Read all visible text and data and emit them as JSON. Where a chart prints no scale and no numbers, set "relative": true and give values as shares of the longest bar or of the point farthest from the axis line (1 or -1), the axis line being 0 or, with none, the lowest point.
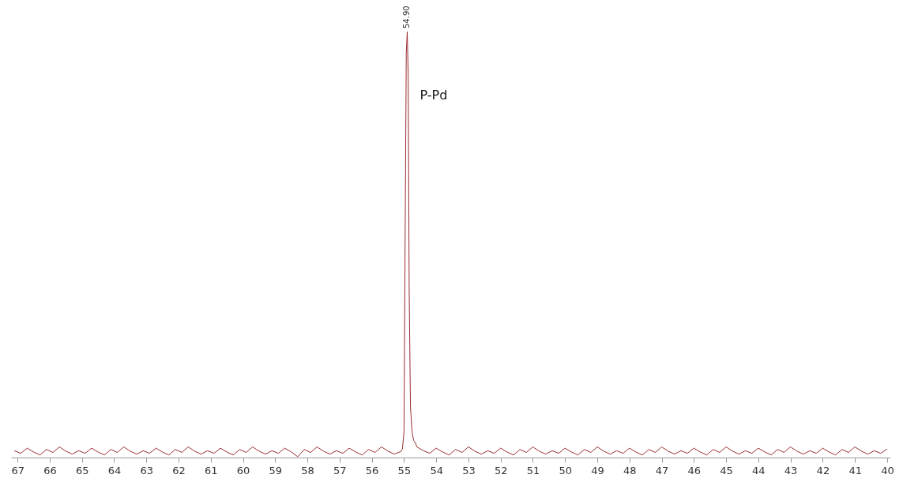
{
  "chart_data": {
    "type": "line",
    "relative": true,
    "tick_labels": "x",
    "xlim": [
      67.2,
      39.9
    ],
    "xticks": [
      67,
      66,
      65,
      64,
      63,
      62,
      61,
      60,
      59,
      58,
      57,
      56,
      55,
      54,
      53,
      52,
      51,
      50,
      49,
      48,
      47,
      46,
      45,
      44,
      43,
      42,
      41,
      40
    ],
    "annotations": [
      {
        "text": "54.90",
        "x": 54.9,
        "y": 1
      },
      {
        "text": "P-Pd",
        "x": 54.9,
        "y": 0.85
      }
    ],
    "series": [
      {
        "color": "#9b2d30",
        "x": [
          67.1,
          66.9,
          66.7,
          66.5,
          66.3,
          66.1,
          65.9,
          65.7,
          65.5,
          65.3,
          65.1,
          64.9,
          64.7,
          64.5,
          64.3,
          64.1,
          63.9,
          63.7,
          63.5,
          63.3,
          63.1,
          62.9,
          62.7,
          62.5,
          62.3,
          62.1,
          61.9,
          61.7,
          61.5,
          61.3,
          61.1,
          60.9,
          60.7,
          60.5,
          60.3,
          60.1,
          59.9,
          59.7,
          59.5,
          59.3,
          59.1,
          58.9,
          58.7,
          58.5,
          58.3,
          58.1,
          57.9,
          57.7,
          57.5,
          57.3,
          57.1,
          56.9,
          56.7,
          56.5,
          56.3,
          56.1,
          55.9,
          55.7,
          55.5,
          55.3,
          55.1,
          55.05,
          55,
          54.97,
          54.93,
          54.9,
          54.87,
          54.84,
          54.8,
          54.75,
          54.7,
          54.65,
          54.6,
          54.4,
          54.2,
          54,
          53.8,
          53.6,
          53.4,
          53.2,
          53,
          52.8,
          52.6,
          52.4,
          52.2,
          52,
          51.8,
          51.6,
          51.4,
          51.2,
          51,
          50.8,
          50.6,
          50.4,
          50.2,
          50,
          49.8,
          49.6,
          49.4,
          49.2,
          49,
          48.8,
          48.6,
          48.4,
          48.2,
          48,
          47.8,
          47.6,
          47.4,
          47.2,
          47,
          46.8,
          46.6,
          46.4,
          46.2,
          46,
          45.8,
          45.6,
          45.4,
          45.2,
          45,
          44.8,
          44.6,
          44.4,
          44.2,
          44,
          43.8,
          43.6,
          43.4,
          43.2,
          43,
          42.8,
          42.6,
          42.4,
          42.2,
          42,
          41.8,
          41.6,
          41.4,
          41.2,
          41,
          40.8,
          40.6,
          40.4,
          40.2,
          40
        ],
        "values": [
          0.016,
          0.01,
          0.022,
          0.013,
          0.006,
          0.019,
          0.012,
          0.025,
          0.015,
          0.008,
          0.016,
          0.01,
          0.022,
          0.013,
          0.006,
          0.019,
          0.012,
          0.025,
          0.015,
          0.008,
          0.016,
          0.01,
          0.022,
          0.013,
          0.006,
          0.019,
          0.012,
          0.025,
          0.015,
          0.008,
          0.016,
          0.01,
          0.022,
          0.013,
          0.006,
          0.019,
          0.012,
          0.025,
          0.015,
          0.008,
          0.016,
          0.01,
          0.022,
          0.013,
          0.002,
          0.019,
          0.012,
          0.025,
          0.015,
          0.008,
          0.016,
          0.01,
          0.022,
          0.013,
          0.006,
          0.019,
          0.012,
          0.025,
          0.015,
          0.008,
          0.014,
          0.02,
          0.06,
          0.45,
          0.95,
          1,
          0.9,
          0.4,
          0.12,
          0.06,
          0.04,
          0.035,
          0.025,
          0.016,
          0.01,
          0.022,
          0.013,
          0.006,
          0.019,
          0.012,
          0.025,
          0.015,
          0.008,
          0.016,
          0.01,
          0.022,
          0.013,
          0.006,
          0.019,
          0.012,
          0.025,
          0.015,
          0.008,
          0.016,
          0.01,
          0.022,
          0.013,
          0.006,
          0.019,
          0.012,
          0.025,
          0.015,
          0.008,
          0.016,
          0.01,
          0.022,
          0.013,
          0.006,
          0.019,
          0.012,
          0.025,
          0.015,
          0.008,
          0.016,
          0.01,
          0.022,
          0.013,
          0.006,
          0.019,
          0.012,
          0.025,
          0.015,
          0.008,
          0.016,
          0.01,
          0.022,
          0.013,
          0.006,
          0.019,
          0.012,
          0.025,
          0.015,
          0.008,
          0.016,
          0.01,
          0.022,
          0.013,
          0.006,
          0.019,
          0.012,
          0.025,
          0.015,
          0.008,
          0.016,
          0.01,
          0.02
        ]
      }
    ]
  }
}
